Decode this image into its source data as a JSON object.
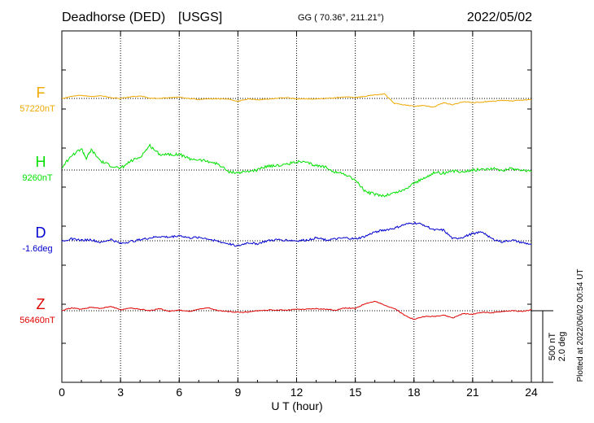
{
  "header": {
    "station": "Deadhorse (DED)",
    "network": "[USGS]",
    "coords": "GG ( 70.36°, 211.21°)",
    "date": "2022/05/02"
  },
  "footer": {
    "plotted": "Plotted at 2022/06/02 00:54 UT"
  },
  "scale_bar": {
    "nt": "500 nT",
    "deg": "2.0 deg"
  },
  "colors": {
    "F": "#f0a800",
    "H": "#00e000",
    "D": "#0000d0",
    "Z": "#e00000"
  },
  "chart_data": {
    "type": "line",
    "xlabel": "U T (hour)",
    "xlim": [
      0,
      24
    ],
    "xticks": [
      "0",
      "3",
      "6",
      "9",
      "12",
      "15",
      "18",
      "21",
      "24"
    ],
    "grid": true,
    "series": [
      {
        "name": "F",
        "baseline_label": "57220nT",
        "x": [
          0,
          0.5,
          1,
          1.5,
          2,
          2.5,
          3,
          3.5,
          4,
          4.5,
          5,
          5.5,
          6,
          6.5,
          7,
          7.5,
          8,
          8.5,
          9,
          9.5,
          10,
          10.5,
          11,
          11.5,
          12,
          12.5,
          13,
          13.5,
          14,
          14.5,
          15,
          15.5,
          16,
          16.5,
          17,
          17.5,
          18,
          18.5,
          19,
          19.5,
          20,
          20.5,
          21,
          21.5,
          22,
          22.5,
          23,
          23.5,
          24
        ],
        "values": [
          0,
          15,
          22,
          12,
          20,
          6,
          0,
          10,
          18,
          2,
          0,
          5,
          9,
          0,
          -8,
          -3,
          -2,
          -5,
          -20,
          -5,
          -8,
          -6,
          2,
          5,
          -3,
          -2,
          -5,
          0,
          5,
          12,
          5,
          15,
          25,
          30,
          -35,
          -45,
          -55,
          -48,
          -62,
          -30,
          -45,
          -22,
          -30,
          -25,
          -20,
          -15,
          -18,
          -12,
          -10
        ]
      },
      {
        "name": "H",
        "baseline_label": "9260nT",
        "x": [
          0,
          0.5,
          1,
          1.25,
          1.5,
          2,
          2.5,
          3,
          3.5,
          4,
          4.5,
          5,
          5.5,
          6,
          6.5,
          7,
          7.5,
          8,
          8.5,
          9,
          9.5,
          10,
          10.5,
          11,
          11.5,
          12,
          12.5,
          13,
          13.5,
          14,
          14.5,
          15,
          15.5,
          16,
          16.5,
          17,
          17.5,
          18,
          18.5,
          19,
          19.5,
          20,
          20.5,
          21,
          21.5,
          22,
          22.5,
          23,
          23.5,
          24
        ],
        "values": [
          20,
          100,
          150,
          80,
          140,
          60,
          30,
          10,
          60,
          90,
          170,
          110,
          110,
          110,
          80,
          70,
          60,
          40,
          -10,
          -20,
          -10,
          0,
          30,
          30,
          40,
          60,
          50,
          30,
          20,
          -15,
          -30,
          -70,
          -150,
          -170,
          -180,
          -160,
          -140,
          -90,
          -60,
          -20,
          -20,
          -10,
          -10,
          0,
          5,
          10,
          0,
          10,
          0,
          -10
        ]
      },
      {
        "name": "D",
        "baseline_label": "-1.6deg",
        "x": [
          0,
          0.5,
          1,
          1.5,
          2,
          2.5,
          3,
          3.5,
          4,
          4.5,
          5,
          5.5,
          6,
          6.5,
          7,
          7.5,
          8,
          8.5,
          9,
          9.5,
          10,
          10.5,
          11,
          11.5,
          12,
          12.5,
          13,
          13.5,
          14,
          14.5,
          15,
          15.5,
          16,
          16.5,
          17,
          17.5,
          18,
          18.5,
          19,
          19.5,
          20,
          20.5,
          21,
          21.5,
          22,
          22.5,
          23,
          23.5,
          24
        ],
        "values": [
          0,
          0.05,
          0.02,
          0.03,
          -0.05,
          0.04,
          -0.08,
          -0.02,
          0.03,
          0.08,
          0.12,
          0.1,
          0.15,
          0.08,
          0.1,
          0.05,
          -0.02,
          -0.08,
          -0.15,
          -0.05,
          -0.08,
          0,
          0.03,
          0.02,
          0,
          0.02,
          0.08,
          0.02,
          0.05,
          0.08,
          0.05,
          0.12,
          0.25,
          0.3,
          0.35,
          0.45,
          0.5,
          0.45,
          0.3,
          0.3,
          0.05,
          0.1,
          0.2,
          0.25,
          0.05,
          -0.03,
          0.02,
          -0.05,
          -0.1
        ]
      },
      {
        "name": "Z",
        "baseline_label": "56460nT",
        "x": [
          0,
          0.5,
          1,
          1.5,
          2,
          2.5,
          3,
          3.5,
          4,
          4.5,
          5,
          5.5,
          6,
          6.5,
          7,
          7.5,
          8,
          8.5,
          9,
          9.5,
          10,
          10.5,
          11,
          11.5,
          12,
          12.5,
          13,
          13.5,
          14,
          14.5,
          15,
          15.5,
          16,
          16.5,
          17,
          17.5,
          18,
          18.5,
          19,
          19.5,
          20,
          20.5,
          21,
          21.5,
          22,
          22.5,
          23,
          23.5,
          24
        ],
        "values": [
          0,
          20,
          10,
          25,
          15,
          30,
          5,
          20,
          10,
          0,
          15,
          -5,
          5,
          -5,
          10,
          20,
          0,
          -5,
          -10,
          -10,
          0,
          5,
          5,
          5,
          10,
          10,
          15,
          10,
          5,
          20,
          15,
          50,
          65,
          40,
          15,
          -30,
          -60,
          -40,
          -40,
          -30,
          -50,
          -20,
          -25,
          -10,
          -15,
          -5,
          0,
          -5,
          5
        ]
      }
    ]
  }
}
